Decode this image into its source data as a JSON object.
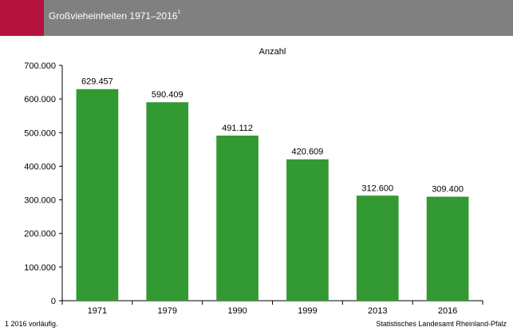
{
  "header": {
    "title": "Großvieheinheiten 1971–2016",
    "title_superscript": "1",
    "accent_color": "#b5123e",
    "bar_color": "#808080"
  },
  "footer": {
    "footnote": "1 2016 vorläufig.",
    "source": "Statistisches Landesamt Rheinland-Pfalz"
  },
  "chart_data": {
    "type": "bar",
    "title": "",
    "ylabel": "Anzahl",
    "xlabel": "",
    "categories": [
      "1971",
      "1979",
      "1990",
      "1999",
      "2013",
      "2016"
    ],
    "values": [
      629457,
      590409,
      491112,
      420609,
      312600,
      309400
    ],
    "data_labels": [
      "629.457",
      "590.409",
      "491.112",
      "420.609",
      "312.600",
      "309.400"
    ],
    "ylim": [
      0,
      700000
    ],
    "yticks": [
      0,
      100000,
      200000,
      300000,
      400000,
      500000,
      600000,
      700000
    ],
    "ytick_labels": [
      "0",
      "100.000",
      "200.000",
      "300.000",
      "400.000",
      "500.000",
      "600.000",
      "700.000"
    ],
    "bar_color": "#339933",
    "grid": false,
    "legend": "none"
  }
}
